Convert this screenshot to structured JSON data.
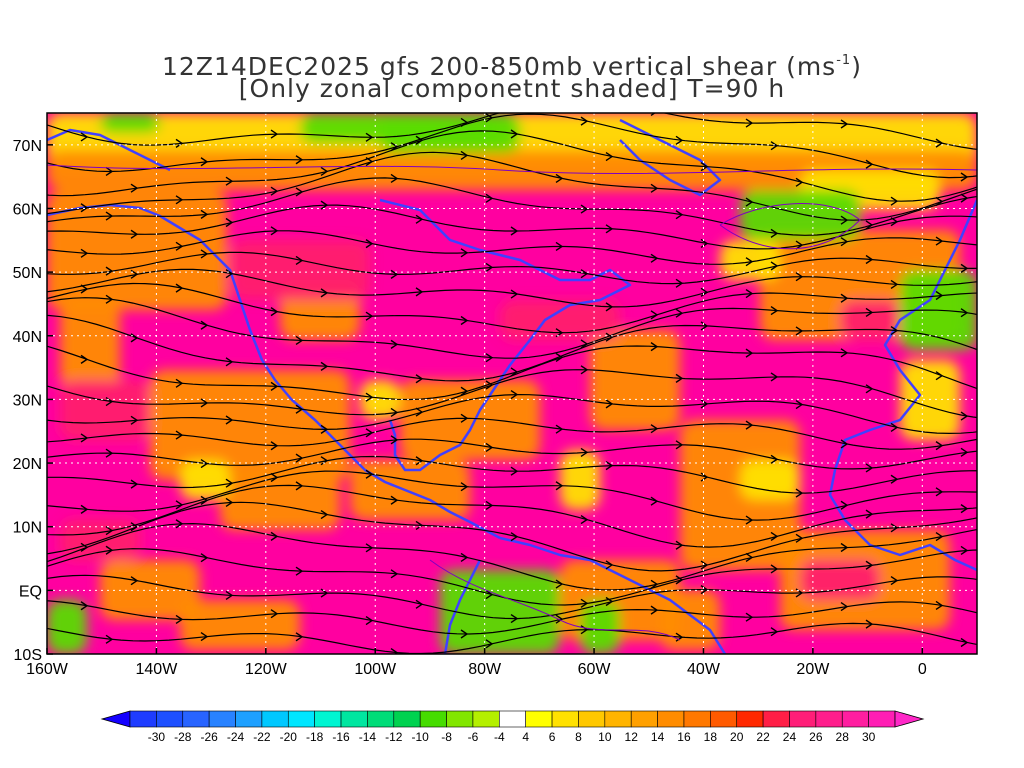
{
  "title": {
    "line1_main": "12Z14DEC2025 gfs 200-850mb vertical shear (ms",
    "line1_sup": "-1",
    "line1_end": ")",
    "line2": "[Only zonal componetnt shaded] T=90 h"
  },
  "map": {
    "lon_range": [
      -160,
      10
    ],
    "lat_range": [
      -10,
      75
    ],
    "lat_ticks": [
      {
        "value": 70,
        "label": "70N"
      },
      {
        "value": 60,
        "label": "60N"
      },
      {
        "value": 50,
        "label": "50N"
      },
      {
        "value": 40,
        "label": "40N"
      },
      {
        "value": 30,
        "label": "30N"
      },
      {
        "value": 20,
        "label": "20N"
      },
      {
        "value": 10,
        "label": "10N"
      },
      {
        "value": 0,
        "label": "EQ"
      },
      {
        "value": -10,
        "label": "10S"
      }
    ],
    "lon_ticks": [
      {
        "value": -160,
        "label": "160W"
      },
      {
        "value": -140,
        "label": "140W"
      },
      {
        "value": -120,
        "label": "120W"
      },
      {
        "value": -100,
        "label": "100W"
      },
      {
        "value": -80,
        "label": "80W"
      },
      {
        "value": -60,
        "label": "60W"
      },
      {
        "value": -40,
        "label": "40W"
      },
      {
        "value": -20,
        "label": "20W"
      },
      {
        "value": 0,
        "label": "0"
      }
    ],
    "colors": {
      "background": "#ff00a0",
      "strong_shear": "#ff1e6e",
      "orange": "#ff8c00",
      "yellow": "#ffe100",
      "green": "#5adc00",
      "coast": "#4040ff",
      "contour": "#8000c0",
      "streamline": "#000000"
    }
  },
  "colorbar": {
    "labels": [
      "-30",
      "-28",
      "-26",
      "-24",
      "-22",
      "-20",
      "-18",
      "-16",
      "-14",
      "-12",
      "-10",
      "-8",
      "-6",
      "-4",
      "4",
      "6",
      "8",
      "10",
      "12",
      "14",
      "16",
      "18",
      "20",
      "22",
      "24",
      "26",
      "28",
      "30"
    ],
    "colors": [
      "#1e3cff",
      "#1e50ff",
      "#2864ff",
      "#2882ff",
      "#1ea0ff",
      "#00c8ff",
      "#00e6ff",
      "#00f5d2",
      "#00e6a0",
      "#00dc78",
      "#00d250",
      "#46dc00",
      "#82e600",
      "#b4f000",
      "#ffffff",
      "#ffff00",
      "#ffe100",
      "#ffc800",
      "#ffb400",
      "#ffa000",
      "#ff8c00",
      "#ff7800",
      "#ff5a00",
      "#ff2800",
      "#ff1e46",
      "#ff1e78",
      "#ff1e8c",
      "#ff1ea0",
      "#ff1eb4"
    ],
    "low_arrow_color": "#1400ff",
    "high_arrow_color": "#ff28c8"
  }
}
